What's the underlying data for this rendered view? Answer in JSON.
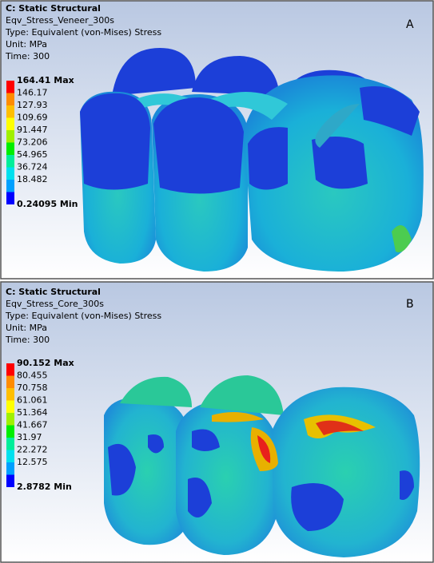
{
  "panels": [
    {
      "header": {
        "title": "C: Static Structural",
        "lines": [
          "Eqv_Stress_Veneer_300s",
          "Type: Equivalent (von-Mises) Stress",
          "Unit: MPa",
          "Time: 300"
        ]
      },
      "legend": [
        "164.41 Max",
        "146.17",
        "127.93",
        "109.69",
        "91.447",
        "73.206",
        "54.965",
        "36.724",
        "18.482",
        "0.24095 Min"
      ],
      "label": "A"
    },
    {
      "header": {
        "title": "C: Static Structural",
        "lines": [
          "Eqv_Stress_Core_300s",
          "Type: Equivalent (von-Mises) Stress",
          "Unit: MPa",
          "Time: 300"
        ]
      },
      "legend": [
        "90.152 Max",
        "80.455",
        "70.758",
        "61.061",
        "51.364",
        "41.667",
        "31.97",
        "22.272",
        "12.575",
        "2.8782 Min"
      ],
      "label": "B"
    }
  ]
}
